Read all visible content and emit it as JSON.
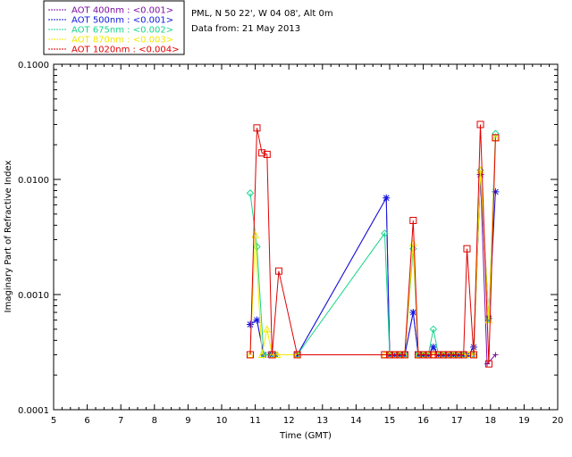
{
  "header": {
    "station": "PML, N 50 22', W 04 08', Alt 0m",
    "date_text": "Data from: 21 May 2013"
  },
  "chart_data": {
    "type": "line",
    "xlabel": "Time (GMT)",
    "ylabel": "Imaginary Part of Refractive Index",
    "xlim": [
      5,
      20
    ],
    "ylim": [
      0.0001,
      0.1
    ],
    "yscale": "log",
    "x_ticks": [
      "5",
      "6",
      "7",
      "8",
      "9",
      "10",
      "11",
      "12",
      "13",
      "14",
      "15",
      "16",
      "17",
      "18",
      "19",
      "20"
    ],
    "y_ticks": [
      {
        "v": 0.0001,
        "label": "0.0001"
      },
      {
        "v": 0.001,
        "label": "0.0010"
      },
      {
        "v": 0.01,
        "label": "0.0100"
      },
      {
        "v": 0.1,
        "label": "0.1000"
      }
    ],
    "legend_position": "top-left, outside plot",
    "series": [
      {
        "name": "AOT  400nm : <0.001>",
        "color": "#7b0ea3",
        "marker": "plus",
        "points": [
          [
            10.85,
            0.00055
          ],
          [
            11.05,
            0.0006
          ],
          [
            11.25,
            0.0003
          ],
          [
            11.45,
            0.0003
          ],
          [
            11.6,
            0.0003
          ],
          [
            12.25,
            0.0003
          ],
          [
            14.9,
            0.0069
          ],
          [
            15.0,
            0.0003
          ],
          [
            15.15,
            0.0003
          ],
          [
            15.3,
            0.0003
          ],
          [
            15.45,
            0.0003
          ],
          [
            15.7,
            0.0007
          ],
          [
            15.85,
            0.0003
          ],
          [
            16.0,
            0.0003
          ],
          [
            16.15,
            0.0003
          ],
          [
            16.3,
            0.00035
          ],
          [
            16.45,
            0.0003
          ],
          [
            16.6,
            0.0003
          ],
          [
            16.75,
            0.0003
          ],
          [
            16.9,
            0.0003
          ],
          [
            17.05,
            0.0003
          ],
          [
            17.2,
            0.0003
          ],
          [
            17.35,
            0.0003
          ],
          [
            17.5,
            0.0003
          ],
          [
            17.7,
            0.011
          ],
          [
            17.9,
            0.00025
          ],
          [
            18.15,
            0.0003
          ]
        ]
      },
      {
        "name": "AOT  500nm : <0.001>",
        "color": "#1018e0",
        "marker": "asterisk",
        "points": [
          [
            10.85,
            0.00055
          ],
          [
            11.05,
            0.0006
          ],
          [
            11.25,
            0.0003
          ],
          [
            11.45,
            0.0003
          ],
          [
            11.6,
            0.0003
          ],
          [
            12.25,
            0.0003
          ],
          [
            14.9,
            0.0069
          ],
          [
            15.0,
            0.0003
          ],
          [
            15.15,
            0.0003
          ],
          [
            15.3,
            0.0003
          ],
          [
            15.45,
            0.0003
          ],
          [
            15.7,
            0.0007
          ],
          [
            15.85,
            0.0003
          ],
          [
            16.0,
            0.0003
          ],
          [
            16.15,
            0.0003
          ],
          [
            16.3,
            0.00035
          ],
          [
            16.45,
            0.0003
          ],
          [
            16.6,
            0.0003
          ],
          [
            16.75,
            0.0003
          ],
          [
            16.9,
            0.0003
          ],
          [
            17.05,
            0.0003
          ],
          [
            17.2,
            0.0003
          ],
          [
            17.35,
            0.0003
          ],
          [
            17.5,
            0.00035
          ],
          [
            17.7,
            0.011
          ],
          [
            17.95,
            0.00062
          ],
          [
            18.15,
            0.0078
          ]
        ]
      },
      {
        "name": "AOT  675nm : <0.002>",
        "color": "#19d68c",
        "marker": "diamond",
        "points": [
          [
            10.85,
            0.0076
          ],
          [
            11.05,
            0.0026
          ],
          [
            11.25,
            0.0003
          ],
          [
            11.45,
            0.0003
          ],
          [
            11.6,
            0.0003
          ],
          [
            12.25,
            0.0003
          ],
          [
            14.85,
            0.0034
          ],
          [
            15.0,
            0.0003
          ],
          [
            15.15,
            0.0003
          ],
          [
            15.3,
            0.0003
          ],
          [
            15.45,
            0.0003
          ],
          [
            15.7,
            0.0025
          ],
          [
            15.85,
            0.0003
          ],
          [
            16.0,
            0.0003
          ],
          [
            16.15,
            0.0003
          ],
          [
            16.3,
            0.0005
          ],
          [
            16.45,
            0.0003
          ],
          [
            16.6,
            0.0003
          ],
          [
            16.75,
            0.0003
          ],
          [
            16.9,
            0.0003
          ],
          [
            17.05,
            0.0003
          ],
          [
            17.2,
            0.0003
          ],
          [
            17.35,
            0.0003
          ],
          [
            17.5,
            0.0003
          ],
          [
            17.7,
            0.012
          ],
          [
            17.95,
            0.00062
          ],
          [
            18.15,
            0.025
          ]
        ]
      },
      {
        "name": "AOT  870nm : <0.003>",
        "color": "#f2ea00",
        "marker": "triangle",
        "points": [
          [
            10.85,
            0.0003
          ],
          [
            11.0,
            0.0033
          ],
          [
            11.2,
            0.0003
          ],
          [
            11.35,
            0.0005
          ],
          [
            11.5,
            0.0003
          ],
          [
            11.65,
            0.0003
          ],
          [
            12.25,
            0.0003
          ],
          [
            14.85,
            0.0003
          ],
          [
            15.0,
            0.0003
          ],
          [
            15.15,
            0.0003
          ],
          [
            15.3,
            0.0003
          ],
          [
            15.45,
            0.0003
          ],
          [
            15.7,
            0.0028
          ],
          [
            15.85,
            0.0003
          ],
          [
            16.0,
            0.0003
          ],
          [
            16.15,
            0.0003
          ],
          [
            16.3,
            0.0003
          ],
          [
            16.45,
            0.0003
          ],
          [
            16.6,
            0.0003
          ],
          [
            16.75,
            0.0003
          ],
          [
            16.9,
            0.0003
          ],
          [
            17.05,
            0.0003
          ],
          [
            17.2,
            0.0003
          ],
          [
            17.35,
            0.0003
          ],
          [
            17.5,
            0.0003
          ],
          [
            17.7,
            0.012
          ],
          [
            17.95,
            0.0006
          ],
          [
            18.15,
            0.023
          ]
        ]
      },
      {
        "name": "AOT 1020nm : <0.004>",
        "color": "#e00000",
        "marker": "square",
        "points": [
          [
            10.85,
            0.0003
          ],
          [
            11.05,
            0.028
          ],
          [
            11.2,
            0.017
          ],
          [
            11.35,
            0.0165
          ],
          [
            11.5,
            0.0003
          ],
          [
            11.7,
            0.0016
          ],
          [
            12.25,
            0.0003
          ],
          [
            14.85,
            0.0003
          ],
          [
            15.0,
            0.0003
          ],
          [
            15.15,
            0.0003
          ],
          [
            15.3,
            0.0003
          ],
          [
            15.45,
            0.0003
          ],
          [
            15.7,
            0.0044
          ],
          [
            15.85,
            0.0003
          ],
          [
            16.0,
            0.0003
          ],
          [
            16.15,
            0.0003
          ],
          [
            16.3,
            0.0003
          ],
          [
            16.45,
            0.0003
          ],
          [
            16.6,
            0.0003
          ],
          [
            16.75,
            0.0003
          ],
          [
            16.9,
            0.0003
          ],
          [
            17.05,
            0.0003
          ],
          [
            17.2,
            0.0003
          ],
          [
            17.3,
            0.0025
          ],
          [
            17.5,
            0.0003
          ],
          [
            17.7,
            0.03
          ],
          [
            17.95,
            0.00025
          ],
          [
            18.15,
            0.023
          ]
        ]
      }
    ]
  }
}
